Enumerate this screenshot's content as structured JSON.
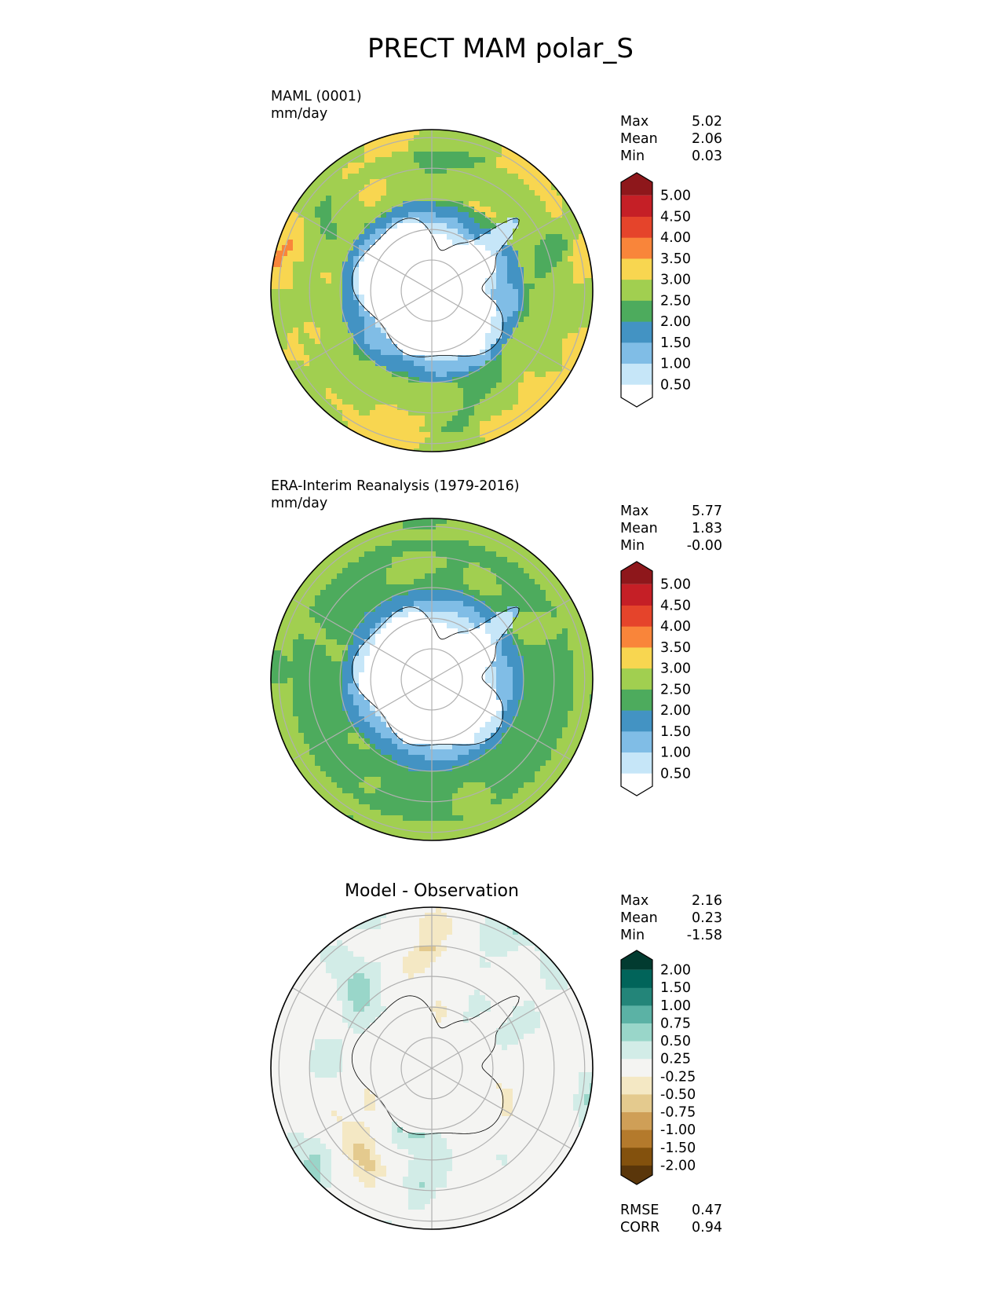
{
  "title": "PRECT MAM polar_S",
  "panels": [
    {
      "title": "MAML (0001)",
      "units": "mm/day",
      "stats": [
        {
          "label": "Max",
          "value": "5.02"
        },
        {
          "label": "Mean",
          "value": "2.06"
        },
        {
          "label": "Min",
          "value": "0.03"
        }
      ]
    },
    {
      "title": "ERA-Interim Reanalysis (1979-2016)",
      "units": "mm/day",
      "stats": [
        {
          "label": "Max",
          "value": "5.77"
        },
        {
          "label": "Mean",
          "value": "1.83"
        },
        {
          "label": "Min",
          "value": "-0.00"
        }
      ]
    },
    {
      "title": "Model - Observation",
      "stats": [
        {
          "label": "Max",
          "value": "2.16"
        },
        {
          "label": "Mean",
          "value": "0.23"
        },
        {
          "label": "Min",
          "value": "-1.58"
        }
      ],
      "metrics": [
        {
          "label": "RMSE",
          "value": "0.47"
        },
        {
          "label": "CORR",
          "value": "0.94"
        }
      ]
    }
  ],
  "chart_data": [
    {
      "type": "heatmap",
      "projection": "south-polar-stereographic",
      "title": "MAML (0001)",
      "units": "mm/day",
      "colorbar": {
        "levels": [
          "0.50",
          "1.00",
          "1.50",
          "2.00",
          "2.50",
          "3.00",
          "3.50",
          "4.00",
          "4.50",
          "5.00"
        ],
        "colors": [
          "#ffffff",
          "#c6e6f8",
          "#80bde6",
          "#4393c3",
          "#4dab5d",
          "#a1cf50",
          "#f8d650",
          "#f9853a",
          "#e5442b",
          "#c51f26",
          "#8e171b"
        ],
        "extend": "both"
      },
      "field_summary": {
        "max": 5.02,
        "mean": 2.06,
        "min": 0.03
      }
    },
    {
      "type": "heatmap",
      "projection": "south-polar-stereographic",
      "title": "ERA-Interim Reanalysis (1979-2016)",
      "units": "mm/day",
      "colorbar": {
        "levels": [
          "0.50",
          "1.00",
          "1.50",
          "2.00",
          "2.50",
          "3.00",
          "3.50",
          "4.00",
          "4.50",
          "5.00"
        ],
        "colors": [
          "#ffffff",
          "#c6e6f8",
          "#80bde6",
          "#4393c3",
          "#4dab5d",
          "#a1cf50",
          "#f8d650",
          "#f9853a",
          "#e5442b",
          "#c51f26",
          "#8e171b"
        ],
        "extend": "both"
      },
      "field_summary": {
        "max": 5.77,
        "mean": 1.83,
        "min": -0.0
      }
    },
    {
      "type": "heatmap",
      "projection": "south-polar-stereographic",
      "title": "Model - Observation",
      "colorbar": {
        "levels": [
          "-2.00",
          "-1.50",
          "-1.00",
          "-0.75",
          "-0.50",
          "-0.25",
          "0.25",
          "0.50",
          "0.75",
          "1.00",
          "1.50",
          "2.00"
        ],
        "colors": [
          "#5a360a",
          "#83510d",
          "#b47a2c",
          "#cf9f57",
          "#e4ca8e",
          "#f4e8c4",
          "#f4f4f2",
          "#d2ece7",
          "#99d6c9",
          "#5bb2a5",
          "#238579",
          "#01645a",
          "#023b30"
        ],
        "extend": "both"
      },
      "field_summary": {
        "max": 2.16,
        "mean": 0.23,
        "min": -1.58,
        "rmse": 0.47,
        "corr": 0.94
      }
    }
  ]
}
